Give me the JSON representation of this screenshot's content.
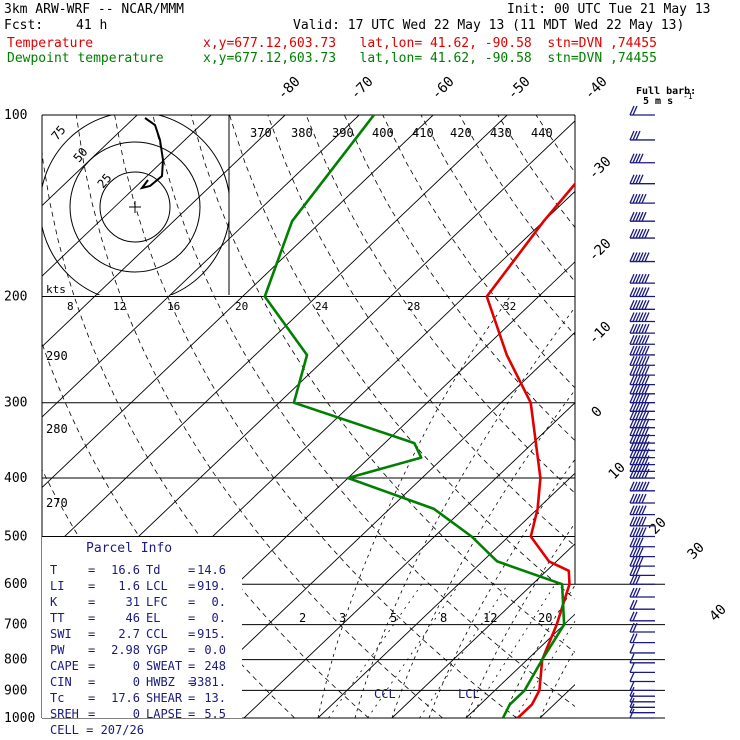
{
  "header": {
    "model": "3km ARW-WRF -- NCAR/MMM",
    "init": "Init: 00 UTC Tue 21 May 13",
    "fcst_label": "Fcst:",
    "fcst_value": "41 h",
    "valid": "Valid: 17 UTC Wed 22 May 13 (11 MDT Wed 22 May 13)",
    "temp_label": "Temperature",
    "temp_loc": "x,y=677.12,603.73   lat,lon= 41.62, -90.58  stn=DVN ,74455",
    "dew_label": "Dewpoint temperature",
    "dew_loc": "x,y=677.12,603.73   lat,lon= 41.62, -90.58  stn=DVN ,74455"
  },
  "colors": {
    "temperature": "#e00000",
    "dewpoint": "#008000",
    "barbs": "#1a1a80"
  },
  "chart_data": {
    "type": "line",
    "title": "",
    "pressure_levels": [
      100,
      200,
      300,
      400,
      500,
      600,
      700,
      800,
      900,
      1000
    ],
    "temp_isotherm_labels": [
      "-80",
      "-70",
      "-60",
      "-50",
      "-40",
      "-30",
      "-20",
      "-10",
      "0",
      "10",
      "20",
      "30",
      "40"
    ],
    "theta_labels": [
      "370",
      "380",
      "390",
      "400",
      "410",
      "420",
      "430",
      "440"
    ],
    "theta_left_labels": [
      "290",
      "280",
      "270"
    ],
    "mixing_ratio_labels": [
      "2",
      "3",
      "5",
      "8",
      "12",
      "20"
    ],
    "hodograph": {
      "unit_label": "kts",
      "ring_labels": [
        "25",
        "50",
        "75"
      ],
      "axis_labels": [
        "8",
        "12",
        "16",
        "20",
        "24",
        "28",
        "32"
      ]
    },
    "barb_legend": {
      "title": "Full barb:",
      "value": "5 m s",
      "superscript": "-1"
    },
    "series": [
      {
        "name": "Temperature",
        "points": [
          [
            100,
            -53
          ],
          [
            150,
            -50
          ],
          [
            200,
            -47
          ],
          [
            250,
            -36
          ],
          [
            300,
            -26
          ],
          [
            400,
            -14
          ],
          [
            450,
            -10
          ],
          [
            500,
            -7
          ],
          [
            550,
            -1
          ],
          [
            570,
            3
          ],
          [
            600,
            5
          ],
          [
            700,
            9
          ],
          [
            800,
            12
          ],
          [
            900,
            16
          ],
          [
            950,
            17
          ],
          [
            1000,
            17
          ]
        ]
      },
      {
        "name": "Dewpoint",
        "points": [
          [
            100,
            -88
          ],
          [
            150,
            -84
          ],
          [
            200,
            -77
          ],
          [
            250,
            -63
          ],
          [
            300,
            -58
          ],
          [
            350,
            -36
          ],
          [
            370,
            -33
          ],
          [
            400,
            -40
          ],
          [
            450,
            -24
          ],
          [
            500,
            -15
          ],
          [
            550,
            -8
          ],
          [
            600,
            4
          ],
          [
            700,
            10
          ],
          [
            800,
            12
          ],
          [
            900,
            14
          ],
          [
            950,
            14
          ],
          [
            1000,
            15
          ]
        ]
      }
    ],
    "wind_barbs": {
      "pressures": [
        100,
        110,
        120,
        130,
        140,
        150,
        160,
        175,
        190,
        200,
        210,
        220,
        230,
        240,
        250,
        260,
        270,
        280,
        290,
        300,
        310,
        320,
        330,
        340,
        350,
        360,
        370,
        380,
        390,
        400,
        420,
        440,
        460,
        480,
        500,
        520,
        540,
        560,
        580,
        600,
        630,
        660,
        690,
        720,
        750,
        780,
        810,
        840,
        870,
        900,
        920,
        940,
        960,
        980,
        1000
      ],
      "speeds": [
        10,
        15,
        20,
        20,
        25,
        25,
        30,
        35,
        40,
        40,
        45,
        45,
        45,
        45,
        45,
        45,
        45,
        45,
        45,
        45,
        40,
        40,
        40,
        40,
        35,
        35,
        35,
        35,
        30,
        30,
        30,
        25,
        25,
        25,
        25,
        20,
        20,
        20,
        15,
        15,
        15,
        10,
        10,
        10,
        10,
        5,
        5,
        5,
        5,
        5,
        5,
        5,
        5,
        5,
        5
      ]
    },
    "lcl_pressure": 919,
    "ccl_pressure": 915,
    "lcl_label": "LCL",
    "ccl_label": "CCL"
  },
  "parcel_info": {
    "title": "Parcel Info",
    "rows": [
      {
        "l1": "T",
        "v1": "16.6",
        "l2": "Td",
        "v2": "14.6"
      },
      {
        "l1": "LI",
        "v1": "1.6",
        "l2": "LCL",
        "v2": "919."
      },
      {
        "l1": "K",
        "v1": "31",
        "l2": "LFC",
        "v2": "0."
      },
      {
        "l1": "TT",
        "v1": "46",
        "l2": "EL",
        "v2": "0."
      },
      {
        "l1": "SWI",
        "v1": "2.7",
        "l2": "CCL",
        "v2": "915."
      },
      {
        "l1": "PW",
        "v1": "2.98",
        "l2": "YGP",
        "v2": "0.0"
      },
      {
        "l1": "CAPE",
        "v1": "0",
        "l2": "SWEAT",
        "v2": "248"
      },
      {
        "l1": "CIN",
        "v1": "0",
        "l2": "HWBZ",
        "v2": "3381."
      },
      {
        "l1": "Tc",
        "v1": "17.6",
        "l2": "SHEAR",
        "v2": "13."
      },
      {
        "l1": "SREH",
        "v1": "0",
        "l2": "LAPSE",
        "v2": "5.5"
      }
    ],
    "cell_label": "CELL",
    "cell_value": "207/26"
  }
}
